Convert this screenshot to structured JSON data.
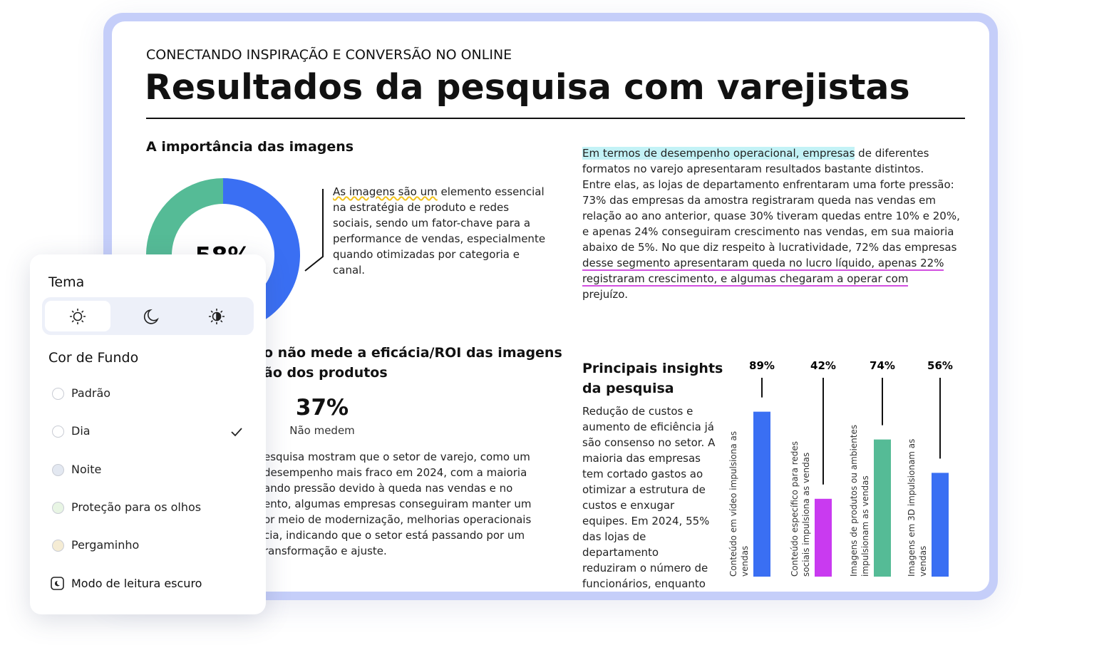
{
  "header": {
    "kicker": "CONECTANDO INSPIRAÇÃO E CONVERSÃO NO ONLINE",
    "title": "Resultados da pesquisa com varejistas"
  },
  "images_section": {
    "heading": "A importância das imagens",
    "text_lines": [
      [
        "As imagens são um",
        " elemento essencial"
      ],
      "na estratégia de produto e redes",
      "sociais, sendo um fator-chave para a",
      "performance de vendas, especialmente",
      "quando otimizadas por categoria e",
      "canal."
    ]
  },
  "performance_section": {
    "text_lines": [
      [
        "Em termos de desempenho operacional, empresas",
        " de diferentes"
      ],
      "formatos no varejo apresentaram resultados bastante distintos.",
      "Entre elas, as lojas de departamento enfrentaram uma forte pressão:",
      "73% das empresas da amostra registraram queda nas vendas em",
      "relação ao ano anterior, quase 30% tiveram quedas entre 10% e 20%,",
      "e apenas 24% conseguiram crescimento nas vendas, em sua maioria",
      "abaixo de 5%. No que diz respeito à lucratividade, 72% das empresas",
      "desse segmento apresentaram queda no lucro líquido, apenas 22%",
      "registraram crescimento, e algumas chegaram a operar com",
      "prejuízo."
    ],
    "underlined_lines": [
      7,
      8
    ]
  },
  "roi_section": {
    "heading_lines": [
      "o não mede a eficácia/ROI das imagens",
      "ão dos produtos"
    ],
    "stat": "37%",
    "stat_label": "Não medem",
    "text_lines": [
      "esquisa mostram que o setor de varejo, como um",
      "desempenho mais fraco em 2024, com a maioria",
      "ando pressão devido à queda nas vendas e no",
      "ento, algumas empresas conseguiram manter um",
      "or meio de modernização, melhorias operacionais",
      "cia, indicando que o setor está passando por um",
      "ransformação e ajuste."
    ]
  },
  "insights_section": {
    "heading_lines": [
      "Principais insights",
      "da pesquisa"
    ],
    "text_lines": [
      "Redução de custos e",
      "aumento de eficiência já",
      "são consenso no setor. A",
      "maioria das empresas",
      "tem cortado gastos ao",
      "otimizar a estrutura de",
      "custos e enxugar",
      "equipes. Em 2024, 55%",
      "das lojas de",
      "departamento",
      "reduziram o número de",
      "funcionários, enquanto"
    ]
  },
  "chart_data": [
    {
      "type": "pie",
      "values": [
        58,
        42
      ],
      "colors": [
        "#3a6ff3",
        "#55bb96"
      ],
      "center_label": "58%"
    },
    {
      "type": "bar",
      "categories": [
        "Conteúdo em vídeo impulsiona as vendas",
        "Conteúdo específico para redes sociais impulsiona as vendas",
        "Imagens de produtos ou ambientes impulsionam as vendas",
        "Imagens em 3D impulsionam as vendas"
      ],
      "values": [
        89,
        42,
        74,
        56
      ],
      "value_labels": [
        "89%",
        "42%",
        "74%",
        "56%"
      ],
      "colors": [
        "#3a6ff3",
        "#c93af0",
        "#55bb96",
        "#3a6ff3"
      ]
    }
  ],
  "panel": {
    "theme_title": "Tema",
    "background_title": "Cor de Fundo",
    "options": [
      {
        "label": "Padrão",
        "color": "#ffffff"
      },
      {
        "label": "Dia",
        "color": "#ffffff"
      },
      {
        "label": "Noite",
        "color": "#e3e8f1"
      },
      {
        "label": "Proteção para os olhos",
        "color": "#e8f5e4"
      },
      {
        "label": "Pergaminho",
        "color": "#f5ecd4"
      }
    ],
    "selected": 1,
    "reading_mode": "Modo de leitura escuro"
  }
}
